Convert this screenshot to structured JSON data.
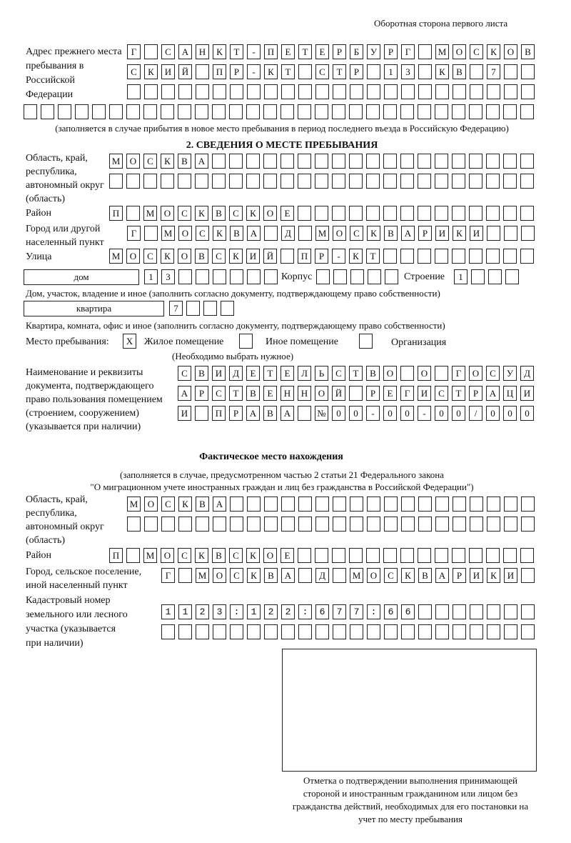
{
  "header": {
    "page_side": "Оборотная сторона первого листа"
  },
  "prev_address": {
    "label": "Адрес прежнего места пребывания в Российской Федерации",
    "rows": [
      "Г САНКТ-ПЕТЕРБУРГ МОСКОВ",
      "СКИЙ ПР-КТ СТР 13 КВ 7  ",
      "                        ",
      "                              "
    ],
    "note": "(заполняется в случае прибытия в новое место пребывания в период последнего въезда в Российскую Федерацию)"
  },
  "section2": {
    "title": "2. СВЕДЕНИЯ О МЕСТЕ ПРЕБЫВАНИЯ",
    "region_label": "Область, край, республика, автономный округ (область)",
    "region_rows": [
      "МОСКВА                   ",
      "                         "
    ],
    "district_label": "Район",
    "district_row": "П МОСКВСКОЕ              ",
    "city_label": "Город или другой населенный пункт",
    "city_row": "Г МОСКВА Д МОСКВАРИКИ   ",
    "street_label": "Улица",
    "street_row": "МОСКОВСКИЙ ПР-КТ         ",
    "house_type": "дом",
    "house_number": "13      ",
    "building_label": "Корпус",
    "building_value": "     ",
    "structure_label": "Строение",
    "structure_value": "1   ",
    "house_note": "Дом, участок, владение и иное (заполнить согласно документу, подтверждающему право собственности)",
    "apt_type": "квартира",
    "apt_number": "7   ",
    "apt_note": "Квартира, комната, офис и иное (заполнить согласно документу, подтверждающему право собственности)",
    "stay_place_label": "Место пребывания:",
    "options": [
      {
        "mark": "X",
        "label": "Жилое помещение"
      },
      {
        "mark": "",
        "label": "Иное помещение"
      },
      {
        "mark": "",
        "label": "Организация"
      }
    ],
    "choose_note": "(Необходимо выбрать нужное)",
    "doc_label": "Наименование и реквизиты документа, подтверждающего право пользования помещением (строением, сооружением) (указывается при наличии)",
    "doc_rows": [
      "СВИДЕТЕЛЬСТВО О ГОСУД",
      "АРСТВЕННОЙ РЕГИСТРАЦИ",
      "И ПРАВА №00-00-00/000"
    ]
  },
  "actual": {
    "title": "Фактическое место нахождения",
    "note_line1": "(заполняется в случае, предусмотренном частью 2 статьи 21 Федерального закона",
    "note_line2": "\"О миграционном учете иностранных граждан и лиц без гражданства в Российской Федерации\")",
    "region_label": "Область, край, республика, автономный округ (область)",
    "region_rows": [
      "МОСКВА                  ",
      "                        "
    ],
    "district_label": "Район",
    "district_row": "П МОСКВСКОЕ              ",
    "city_label": "Город, сельское поселение, иной населенный пункт",
    "city_row": "Г МОСКВА Д МОСКВАРИКИ ",
    "cadastral_label": "Кадастровый номер земельного или лесного участка (указывается при наличии)",
    "cadastral_rows": [
      "1123:122:677:66       ",
      "                      "
    ]
  },
  "confirmation": {
    "caption": "Отметка о подтверждении выполнения принимающей стороной и иностранным гражданином или лицом без гражданства действий, необходимых для его постановки на учет по месту пребывания"
  }
}
